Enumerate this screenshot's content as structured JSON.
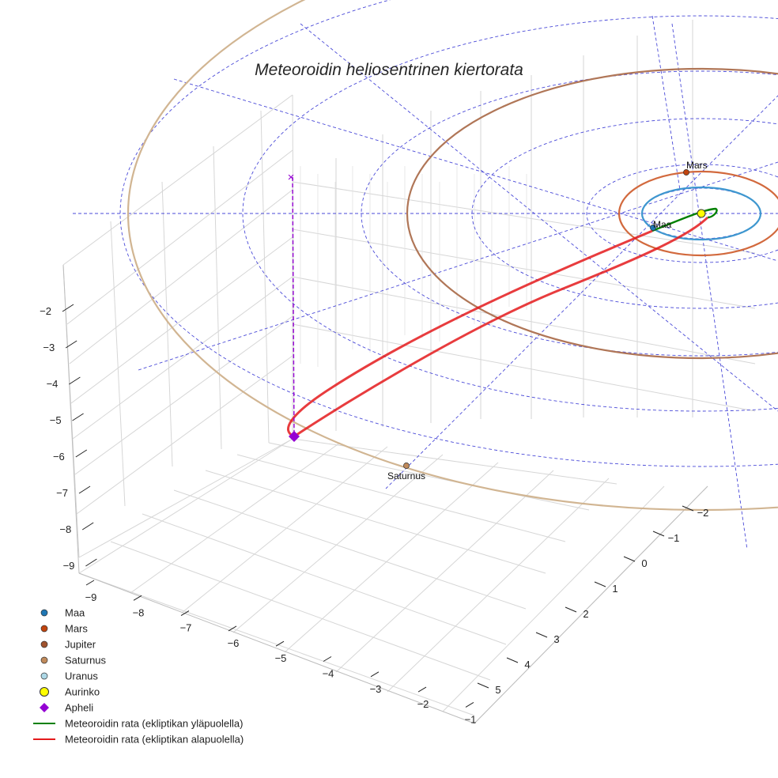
{
  "chart_data": {
    "type": "line",
    "title": "Meteoroidin heliosentrinen kiertorata",
    "axes": {
      "x_ticks": [
        -9,
        -8,
        -7,
        -6,
        -5,
        -4,
        -3,
        -2,
        -1
      ],
      "y_ticks": [
        -2,
        -1,
        0,
        1,
        2,
        3,
        4,
        5
      ],
      "z_ticks": [
        -2,
        -3,
        -4,
        -5,
        -6,
        -7,
        -8,
        -9
      ],
      "grid": true
    },
    "planets": [
      {
        "name": "Maa",
        "label": "Maa",
        "color": "#1f77b4",
        "orbit_color": "#3e97cf",
        "orbit_radius_au": 1.0
      },
      {
        "name": "Mars",
        "label": "Mars",
        "color": "#c1440e",
        "orbit_color": "#d2693d",
        "orbit_radius_au": 1.52
      },
      {
        "name": "Jupiter",
        "label": "",
        "color": "#a0522d",
        "orbit_color": "#b07657",
        "orbit_radius_au": 5.2
      },
      {
        "name": "Saturnus",
        "label": "Saturnus",
        "color": "#c08a5b",
        "orbit_color": "#d1b592",
        "orbit_radius_au": 9.54
      },
      {
        "name": "Uranus",
        "label": "",
        "color": "#7fc3db",
        "orbit_color": "#7fc3db",
        "orbit_radius_au": 19.2
      }
    ],
    "sun": {
      "name": "Aurinko",
      "color": "#ffff00"
    },
    "aphelion": {
      "name": "Apheli",
      "symbol": "diamond",
      "color": "#9400d3"
    },
    "meteoroid_orbit": [
      {
        "name": "Meteoroidin rata (ekliptikan yläpuolella)",
        "color": "#008000"
      },
      {
        "name": "Meteoroidin rata (ekliptikan alapuolella)",
        "color": "#e41a1c"
      }
    ],
    "legend_position": "bottom-left",
    "legend": [
      {
        "label": "Maa",
        "marker": "circle",
        "color": "#1f77b4"
      },
      {
        "label": "Mars",
        "marker": "circle",
        "color": "#c1440e"
      },
      {
        "label": "Jupiter",
        "marker": "circle",
        "color": "#a0522d"
      },
      {
        "label": "Saturnus",
        "marker": "circle",
        "color": "#c08a5b"
      },
      {
        "label": "Uranus",
        "marker": "circle",
        "color": "#add8e6"
      },
      {
        "label": "Aurinko",
        "marker": "circle-large",
        "color": "#ffff00"
      },
      {
        "label": "Apheli",
        "marker": "diamond",
        "color": "#9400d3"
      },
      {
        "label": "Meteoroidin rata (ekliptikan yläpuolella)",
        "marker": "line",
        "color": "#008000"
      },
      {
        "label": "Meteoroidin rata (ekliptikan alapuolella)",
        "marker": "line",
        "color": "#e41a1c"
      }
    ]
  }
}
